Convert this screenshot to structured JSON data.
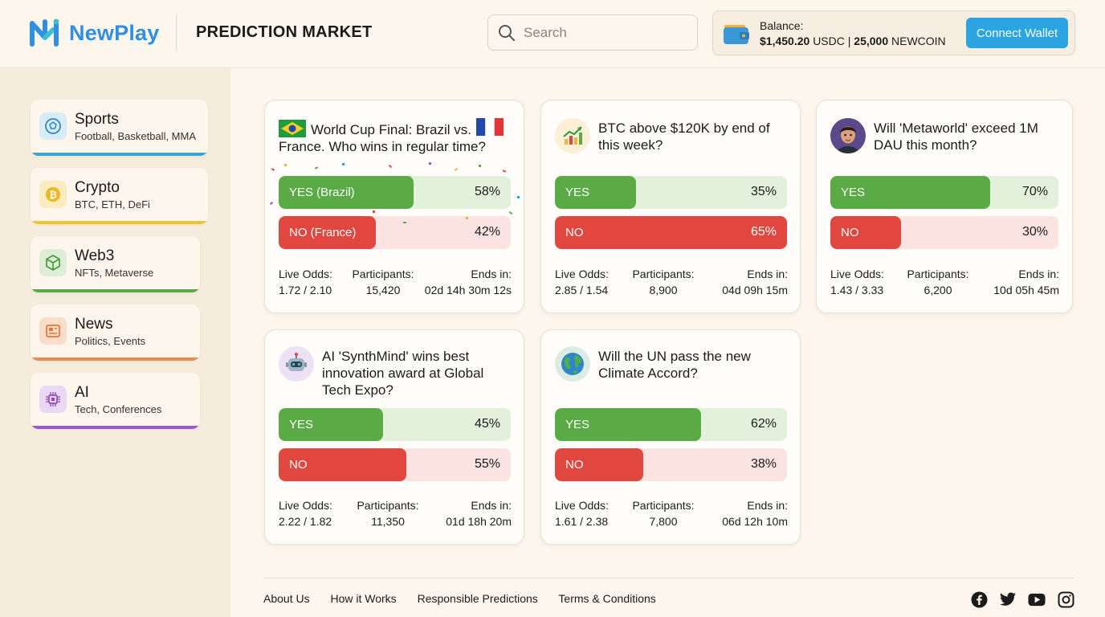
{
  "header": {
    "logo_text": "NewPlay",
    "title": "PREDICTION MARKET",
    "search_placeholder": "Search",
    "balance_label": "Balance:",
    "balance_usdc": "$1,450.20",
    "balance_usdc_unit": "USDC",
    "balance_sep": "|",
    "balance_coin": "25,000",
    "balance_coin_unit": "NEWCOIN",
    "connect_label": "Connect Wallet"
  },
  "sidebar": {
    "items": [
      {
        "title": "Sports",
        "subtitle": "Football, Basketball, MMA",
        "icon": "soccer-ball-icon",
        "color": "#39a3dd"
      },
      {
        "title": "Crypto",
        "subtitle": "BTC, ETH, DeFi",
        "icon": "bitcoin-icon",
        "color": "#f1c232"
      },
      {
        "title": "Web3",
        "subtitle": "NFTs, Metaverse",
        "icon": "cube-icon",
        "color": "#5aab45"
      },
      {
        "title": "News",
        "subtitle": "Politics, Events",
        "icon": "newspaper-icon",
        "color": "#f08a4b"
      },
      {
        "title": "AI",
        "subtitle": "Tech, Conferences",
        "icon": "chip-icon",
        "color": "#9b59d0"
      }
    ]
  },
  "markets": [
    {
      "question": "World Cup Final: Brazil vs.   France. Who wins in regular time?",
      "icon": "flag-brazil-france-icon",
      "yes_label": "YES (Brazil)",
      "yes_pct": 58,
      "yes_pct_text": "58%",
      "no_label": "NO (France)",
      "no_pct": 42,
      "no_pct_text": "42%",
      "odds_label": "Live Odds:",
      "odds": "1.72 / 2.10",
      "participants_label": "Participants:",
      "participants": "15,420",
      "ends_label": "Ends in:",
      "ends": "02d 14h 30m 12s"
    },
    {
      "question": "BTC above $120K by end of this week?",
      "icon": "chart-up-icon",
      "yes_label": "YES",
      "yes_pct": 35,
      "yes_pct_text": "35%",
      "no_label": "NO",
      "no_pct": 65,
      "no_pct_text": "65%",
      "odds_label": "Live Odds:",
      "odds": "2.85 / 1.54",
      "participants_label": "Participants:",
      "participants": "8,900",
      "ends_label": "Ends in:",
      "ends": "04d 09h 15m"
    },
    {
      "question": "Will 'Metaworld' exceed 1M DAU this month?",
      "icon": "avatar-icon",
      "yes_label": "YES",
      "yes_pct": 70,
      "yes_pct_text": "70%",
      "no_label": "NO",
      "no_pct": 30,
      "no_pct_text": "30%",
      "odds_label": "Live Odds:",
      "odds": "1.43 / 3.33",
      "participants_label": "Participants:",
      "participants": "6,200",
      "ends_label": "Ends in:",
      "ends": "10d 05h 45m"
    },
    {
      "question": "AI 'SynthMind' wins best innovation award at Global Tech Expo?",
      "icon": "robot-icon",
      "yes_label": "YES",
      "yes_pct": 45,
      "yes_pct_text": "45%",
      "no_label": "NO",
      "no_pct": 55,
      "no_pct_text": "55%",
      "odds_label": "Live Odds:",
      "odds": "2.22 / 1.82",
      "participants_label": "Participants:",
      "participants": "11,350",
      "ends_label": "Ends in:",
      "ends": "01d 18h 20m"
    },
    {
      "question": "Will the UN pass the new Climate Accord?",
      "icon": "globe-icon",
      "yes_label": "YES",
      "yes_pct": 62,
      "yes_pct_text": "62%",
      "no_label": "NO",
      "no_pct": 38,
      "no_pct_text": "38%",
      "odds_label": "Live Odds:",
      "odds": "1.61 / 2.38",
      "participants_label": "Participants:",
      "participants": "7,800",
      "ends_label": "Ends in:",
      "ends": "06d 12h 10m"
    }
  ],
  "footer": {
    "links": [
      "About Us",
      "How it Works",
      "Responsible Predictions",
      "Terms & Conditions"
    ],
    "socials": [
      "facebook-icon",
      "twitter-icon",
      "youtube-icon",
      "instagram-icon"
    ]
  }
}
